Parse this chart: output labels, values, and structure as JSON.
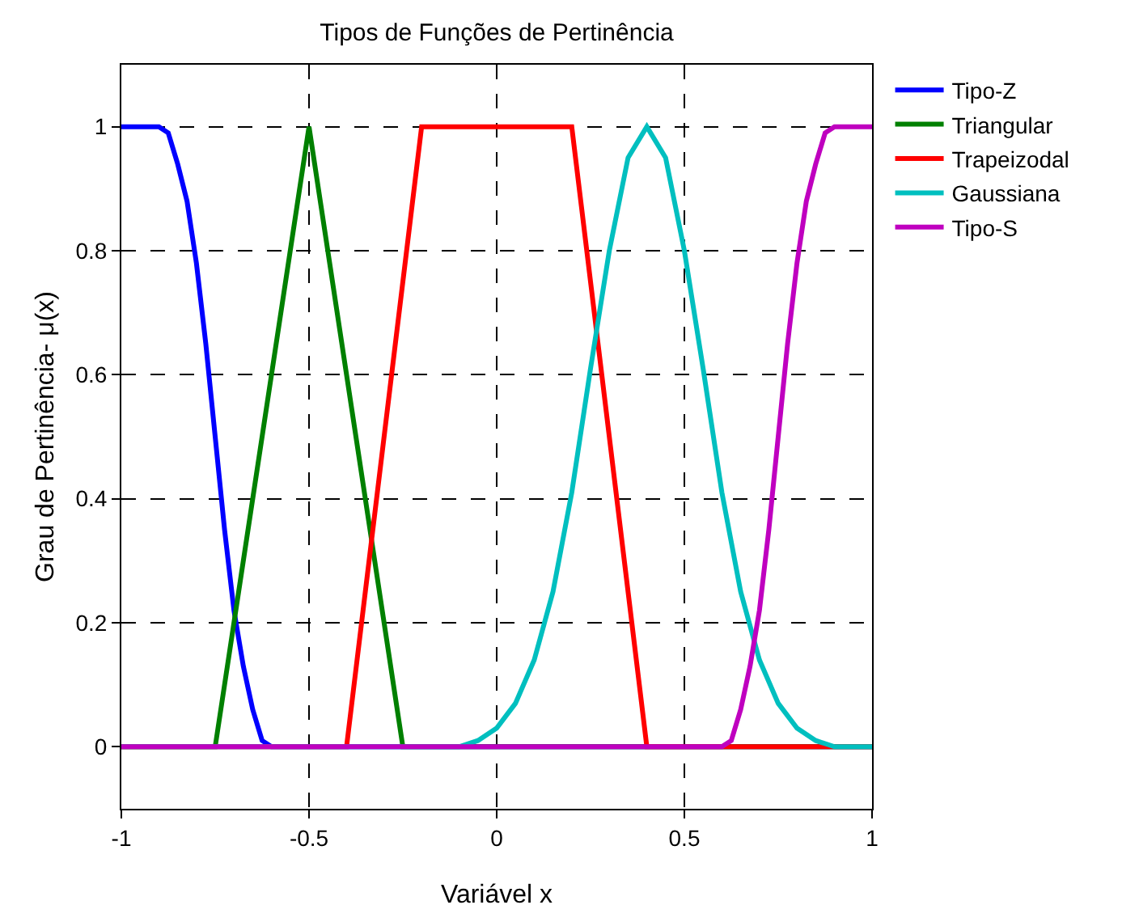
{
  "chart_data": {
    "type": "line",
    "title": "Tipos de Funções de Pertinência",
    "xlabel": "Variável x",
    "ylabel": "Grau de Pertinência- μ(x)",
    "xlim": [
      -1,
      1
    ],
    "xticks": [
      -1,
      -0.5,
      0,
      0.5,
      1
    ],
    "ylim": [
      -0.1,
      1.1
    ],
    "yticks": [
      0,
      0.2,
      0.4,
      0.6,
      0.8,
      1
    ],
    "grid": true,
    "legend": "top right",
    "line_style": "solid",
    "marker": "none",
    "series": [
      {
        "name": "Tipo-Z",
        "color": "#0000ff",
        "x": [
          -1,
          -0.9,
          -0.875,
          -0.85,
          -0.825,
          -0.8,
          -0.775,
          -0.75,
          -0.725,
          -0.7,
          -0.675,
          -0.65,
          -0.625,
          -0.6,
          1
        ],
        "values": [
          1,
          1,
          0.99,
          0.94,
          0.88,
          0.78,
          0.65,
          0.5,
          0.35,
          0.22,
          0.13,
          0.06,
          0.01,
          0,
          0
        ]
      },
      {
        "name": "Triangular",
        "color": "#008000",
        "x": [
          -1,
          -0.75,
          -0.5,
          -0.25,
          1
        ],
        "values": [
          0,
          0,
          1,
          0,
          0
        ]
      },
      {
        "name": "Trapeizodal",
        "color": "#ff0000",
        "x": [
          -1,
          -0.4,
          -0.2,
          0.2,
          0.4,
          1
        ],
        "values": [
          0,
          0,
          1,
          1,
          0,
          0
        ]
      },
      {
        "name": "Gaussiana",
        "color": "#00bfbf",
        "x": [
          -1,
          -0.1,
          -0.05,
          0,
          0.05,
          0.1,
          0.15,
          0.2,
          0.25,
          0.3,
          0.35,
          0.4,
          0.45,
          0.5,
          0.55,
          0.6,
          0.65,
          0.7,
          0.75,
          0.8,
          0.85,
          0.9,
          1
        ],
        "values": [
          0,
          0,
          0.01,
          0.03,
          0.07,
          0.14,
          0.25,
          0.41,
          0.61,
          0.8,
          0.95,
          1,
          0.95,
          0.8,
          0.61,
          0.41,
          0.25,
          0.14,
          0.07,
          0.03,
          0.01,
          0,
          0
        ]
      },
      {
        "name": "Tipo-S",
        "color": "#bf00bf",
        "x": [
          -1,
          0.6,
          0.625,
          0.65,
          0.675,
          0.7,
          0.725,
          0.75,
          0.775,
          0.8,
          0.825,
          0.85,
          0.875,
          0.9,
          1
        ],
        "values": [
          0,
          0,
          0.01,
          0.06,
          0.13,
          0.22,
          0.35,
          0.5,
          0.65,
          0.78,
          0.88,
          0.94,
          0.99,
          1,
          1
        ]
      }
    ]
  }
}
